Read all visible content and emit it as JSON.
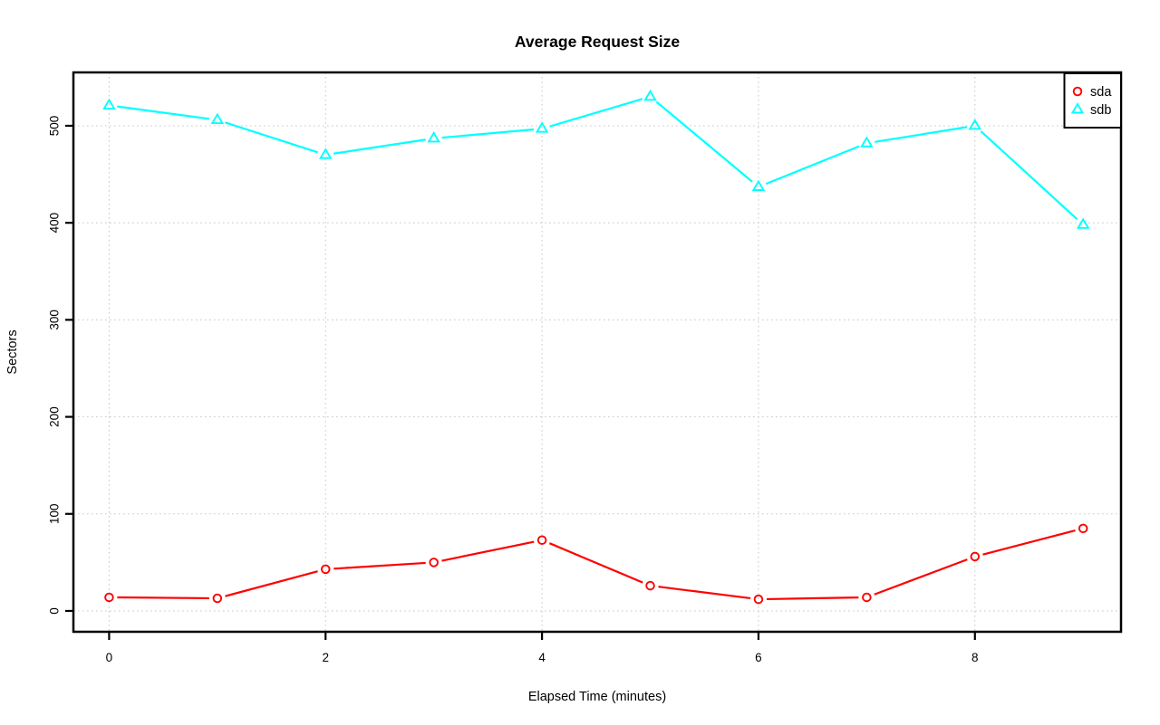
{
  "figure": {
    "background": "#ffffff",
    "axis_color": "#000000",
    "text_color": "#000000"
  },
  "chart_data": {
    "type": "line",
    "title": "Average Request Size",
    "xlabel": "Elapsed Time (minutes)",
    "ylabel": "Sectors",
    "x": [
      0,
      1,
      2,
      3,
      4,
      5,
      6,
      7,
      8,
      9
    ],
    "series": [
      {
        "name": "sda",
        "color": "#ff0000",
        "marker": "circle",
        "values": [
          14,
          13,
          43,
          50,
          73,
          26,
          12,
          14,
          56,
          85
        ]
      },
      {
        "name": "sdb",
        "color": "#00ffff",
        "marker": "triangle",
        "values": [
          521,
          506,
          470,
          487,
          497,
          530,
          437,
          482,
          500,
          398
        ]
      }
    ],
    "x_ticks": [
      0,
      2,
      4,
      6,
      8
    ],
    "y_ticks": [
      0,
      100,
      200,
      300,
      400,
      500
    ],
    "xlim": [
      -0.33,
      9.35
    ],
    "ylim": [
      -21.5,
      555
    ],
    "grid": {
      "visible": true,
      "line_style": "dotted",
      "color": "#c8c8c8"
    },
    "legend": {
      "position": "topright",
      "entries": [
        "sda",
        "sdb"
      ]
    },
    "style": "points-and-lines-with-gaps"
  }
}
